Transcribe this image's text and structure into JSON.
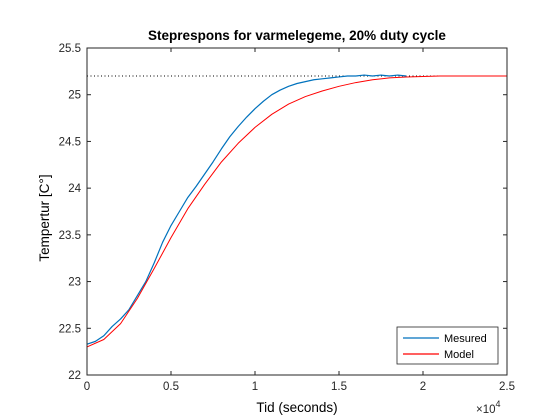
{
  "chart_data": {
    "type": "line",
    "title": "Steprespons for varmelegeme, 20% duty cycle",
    "xlabel": "Tid (seconds)",
    "ylabel": "Tempertur [C°]",
    "x_exponent_label": "×10",
    "x_exponent_power": "4",
    "xlim": [
      0,
      25000
    ],
    "ylim": [
      22,
      25.5
    ],
    "x_ticks": [
      0,
      5000,
      10000,
      15000,
      20000,
      25000
    ],
    "x_tick_labels": [
      "0",
      "0.5",
      "1",
      "1.5",
      "2",
      "2.5"
    ],
    "y_ticks": [
      22,
      22.5,
      23,
      23.5,
      24,
      24.5,
      25,
      25.5
    ],
    "y_tick_labels": [
      "22",
      "22.5",
      "23",
      "23.5",
      "24",
      "24.5",
      "25",
      "25.5"
    ],
    "grid": false,
    "legend_position": "bottom-right",
    "reference_line": {
      "style": "dotted",
      "color": "#000000",
      "y": 25.2
    },
    "series": [
      {
        "name": "Mesured",
        "color": "#0072BD",
        "x": [
          0,
          500,
          1000,
          1500,
          2000,
          2500,
          3000,
          3500,
          4000,
          4500,
          5000,
          5500,
          6000,
          6500,
          7000,
          7500,
          8000,
          8500,
          9000,
          9500,
          10000,
          10500,
          11000,
          11500,
          12000,
          12500,
          13000,
          13500,
          14000,
          14500,
          15000,
          15500,
          16000,
          16500,
          17000,
          17500,
          18000,
          18500,
          19000
        ],
        "y": [
          22.33,
          22.36,
          22.42,
          22.52,
          22.6,
          22.7,
          22.85,
          23.0,
          23.2,
          23.42,
          23.6,
          23.75,
          23.9,
          24.02,
          24.15,
          24.28,
          24.42,
          24.55,
          24.66,
          24.76,
          24.85,
          24.93,
          25.0,
          25.05,
          25.09,
          25.12,
          25.14,
          25.16,
          25.17,
          25.18,
          25.19,
          25.2,
          25.2,
          25.21,
          25.2,
          25.21,
          25.2,
          25.21,
          25.2
        ]
      },
      {
        "name": "Model",
        "color": "#FF0000",
        "x": [
          0,
          1000,
          2000,
          3000,
          4000,
          5000,
          6000,
          7000,
          8000,
          9000,
          10000,
          11000,
          12000,
          13000,
          14000,
          15000,
          16000,
          17000,
          18000,
          19000,
          20000,
          21000,
          22000,
          23000,
          24000,
          25000
        ],
        "y": [
          22.3,
          22.38,
          22.55,
          22.82,
          23.14,
          23.47,
          23.78,
          24.04,
          24.28,
          24.48,
          24.65,
          24.79,
          24.9,
          24.98,
          25.04,
          25.09,
          25.13,
          25.16,
          25.18,
          25.19,
          25.195,
          25.2,
          25.2,
          25.2,
          25.2,
          25.2
        ]
      }
    ]
  }
}
